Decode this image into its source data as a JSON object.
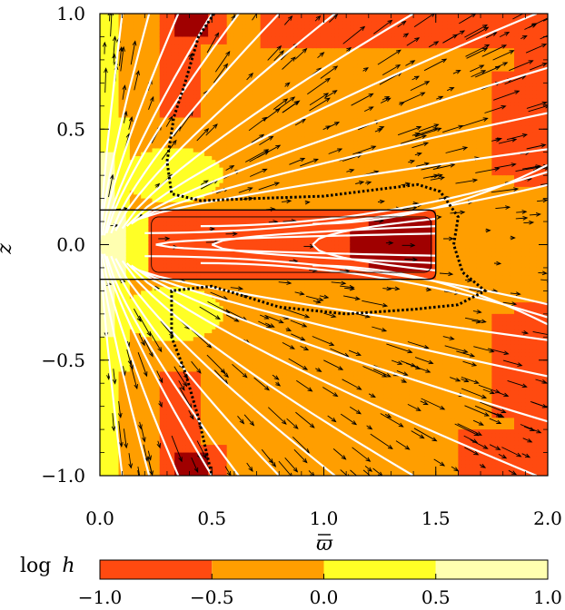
{
  "chart_data": {
    "type": "heatmap",
    "title": "",
    "xlabel": "ϖ",
    "ylabel": "z",
    "xlim": [
      0.0,
      2.0
    ],
    "ylim": [
      -1.0,
      1.0
    ],
    "x_ticks": [
      "0.0",
      "0.5",
      "1.0",
      "1.5",
      "2.0"
    ],
    "y_ticks": [
      "−1.0",
      "−0.5",
      "0.0",
      "0.5",
      "1.0"
    ],
    "colorbar": {
      "label": "log",
      "label_var": "h",
      "ticks": [
        "−1.0",
        "−0.5",
        "0.0",
        "0.5",
        "1.0"
      ],
      "bins": [
        {
          "from": -1.0,
          "to": -0.5,
          "color": "#ff4a10"
        },
        {
          "from": -0.5,
          "to": 0.0,
          "color": "#ff9e00"
        },
        {
          "from": 0.0,
          "to": 0.5,
          "color": "#ffff26"
        },
        {
          "from": 0.5,
          "to": 1.0,
          "color": "#ffffb0"
        }
      ],
      "below_range_color": "#a00000"
    },
    "disk": {
      "x_range": [
        0.0,
        1.5
      ],
      "z_range": [
        -0.15,
        0.15
      ]
    },
    "overlays": [
      "white field lines",
      "black velocity arrows",
      "dotted boundary contour"
    ]
  },
  "colors": {
    "white_line": "#ffffff",
    "arrow": "#000000",
    "contour": "#000000"
  }
}
